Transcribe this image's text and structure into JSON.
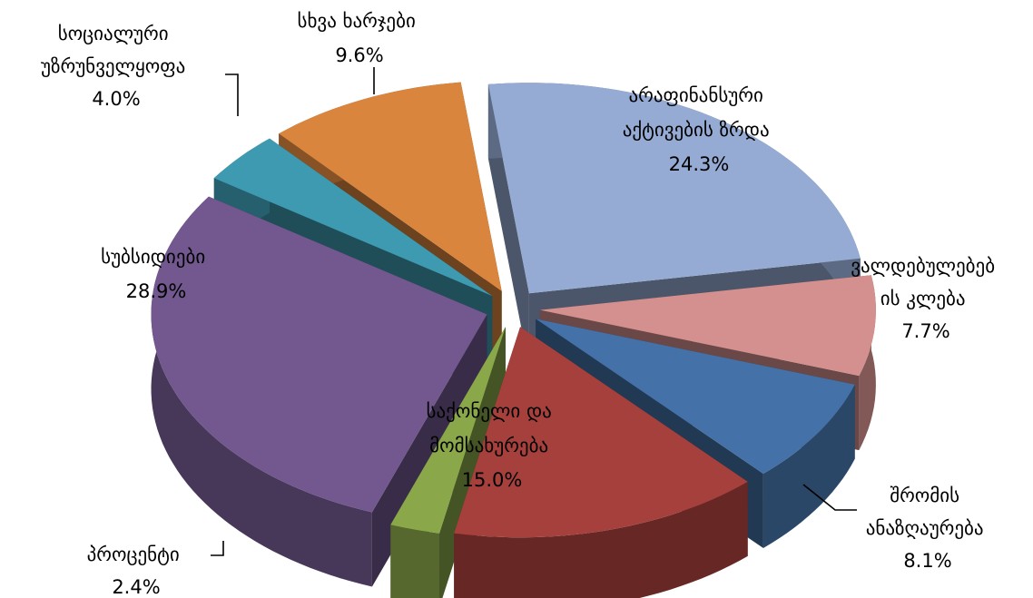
{
  "chart_data": {
    "type": "pie",
    "style": "exploded-3d",
    "title": "",
    "slices": [
      {
        "label": "არაფინანსური აქტივების ზრდა",
        "lines": [
          "არაფინანსური",
          "აქტივების ზრდა"
        ],
        "value": 24.3,
        "pct_label": "24.3%",
        "color": "#95abd3"
      },
      {
        "label": "ვალდებულებების კლება",
        "lines": [
          "ვალდებულებებ",
          "ის კლება"
        ],
        "value": 7.7,
        "pct_label": "7.7%",
        "color": "#d4908e"
      },
      {
        "label": "შრომის ანაზღაურება",
        "lines": [
          "შრომის",
          "ანაზღაურება"
        ],
        "value": 8.1,
        "pct_label": "8.1%",
        "color": "#4472a8"
      },
      {
        "label": "საქონელი და მომსახურება",
        "lines": [
          "საქონელი და",
          "მომსახურება"
        ],
        "value": 15.0,
        "pct_label": "15.0%",
        "color": "#a6403c"
      },
      {
        "label": "პროცენტი",
        "lines": [
          "პროცენტი"
        ],
        "value": 2.4,
        "pct_label": "2.4%",
        "color": "#8aa84a"
      },
      {
        "label": "სუბსიდიები",
        "lines": [
          "სუბსიდიები"
        ],
        "value": 28.9,
        "pct_label": "28.9%",
        "color": "#72588f"
      },
      {
        "label": "სოციალური უზრუნველყოფა",
        "lines": [
          "სოციალური",
          "უზრუნველყოფა"
        ],
        "value": 4.0,
        "pct_label": "4.0%",
        "color": "#3e9ab0"
      },
      {
        "label": "სხვა ხარჯები",
        "lines": [
          "სხვა ხარჯები"
        ],
        "value": 9.6,
        "pct_label": "9.6%",
        "color": "#d9853d"
      }
    ]
  }
}
